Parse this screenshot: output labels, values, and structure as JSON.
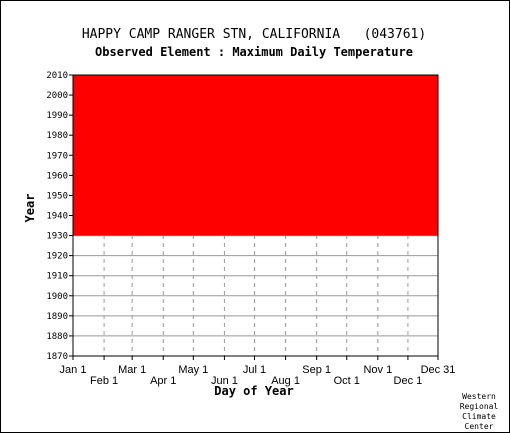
{
  "chart_data": {
    "type": "heatmap",
    "title": "HAPPY CAMP RANGER STN, CALIFORNIA   (043761)",
    "subtitle": "Observed Element : Maximum Daily Temperature",
    "xlabel": "Day of Year",
    "ylabel": "Year",
    "ylim": [
      1870,
      2010
    ],
    "yticks": [
      1870,
      1880,
      1890,
      1900,
      1910,
      1920,
      1930,
      1940,
      1950,
      1960,
      1970,
      1980,
      1990,
      2000,
      2010
    ],
    "xlim": [
      1,
      365
    ],
    "xticks_top": [
      {
        "label": "Jan 1",
        "day": 1
      },
      {
        "label": "Mar 1",
        "day": 60
      },
      {
        "label": "May 1",
        "day": 121
      },
      {
        "label": "Jul 1",
        "day": 182
      },
      {
        "label": "Sep 1",
        "day": 244
      },
      {
        "label": "Nov 1",
        "day": 305
      },
      {
        "label": "Dec 31",
        "day": 365
      }
    ],
    "xticks_bottom": [
      {
        "label": "Feb 1",
        "day": 32
      },
      {
        "label": "Apr 1",
        "day": 91
      },
      {
        "label": "Jun 1",
        "day": 152
      },
      {
        "label": "Aug 1",
        "day": 213
      },
      {
        "label": "Oct 1",
        "day": 274
      },
      {
        "label": "Dec 1",
        "day": 335
      }
    ],
    "data_period": {
      "start_year": 1931,
      "end_year": 2010
    },
    "grid": true,
    "fill_color": "#ff0000",
    "grid_color": "#999999"
  },
  "credit": [
    "Western",
    "Regional",
    "Climate",
    "Center"
  ]
}
